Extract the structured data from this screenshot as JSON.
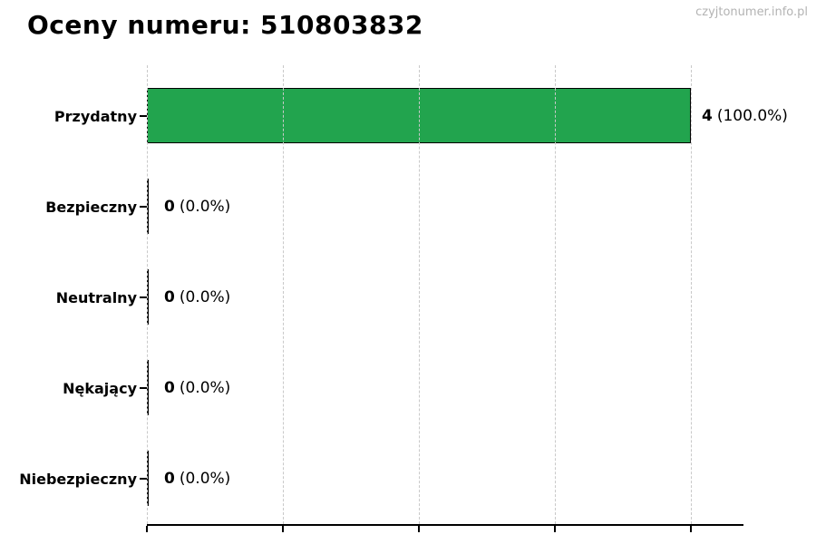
{
  "header": {
    "title": "Oceny numeru: 510803832",
    "watermark": "czyjtonumer.info.pl"
  },
  "chart_data": {
    "type": "bar",
    "orientation": "horizontal",
    "title": "Oceny numeru: 510803832",
    "categories": [
      "Przydatny",
      "Bezpieczny",
      "Neutralny",
      "Nękający",
      "Niebezpieczny"
    ],
    "values": [
      4,
      0,
      0,
      0,
      0
    ],
    "percentages": [
      100.0,
      0.0,
      0.0,
      0.0,
      0.0
    ],
    "value_labels": [
      "4 (100.0%)",
      "0 (0.0%)",
      "0 (0.0%)",
      "0 (0.0%)",
      "0 (0.0%)"
    ],
    "pct_labels": [
      "(100.0%)",
      "(0.0%)",
      "(0.0%)",
      "(0.0%)",
      "(0.0%)"
    ],
    "xlabel": "",
    "ylabel": "",
    "xlim": [
      0,
      4.4
    ],
    "x_ticks": [
      0,
      1,
      2,
      3,
      4
    ],
    "x_tick_labels_visible": false,
    "grid": "vertical-dashed",
    "grid_color": "#c9c9c9",
    "bar_color": "#22a44e",
    "bar_edge_color": "#000000",
    "legend": "none"
  }
}
